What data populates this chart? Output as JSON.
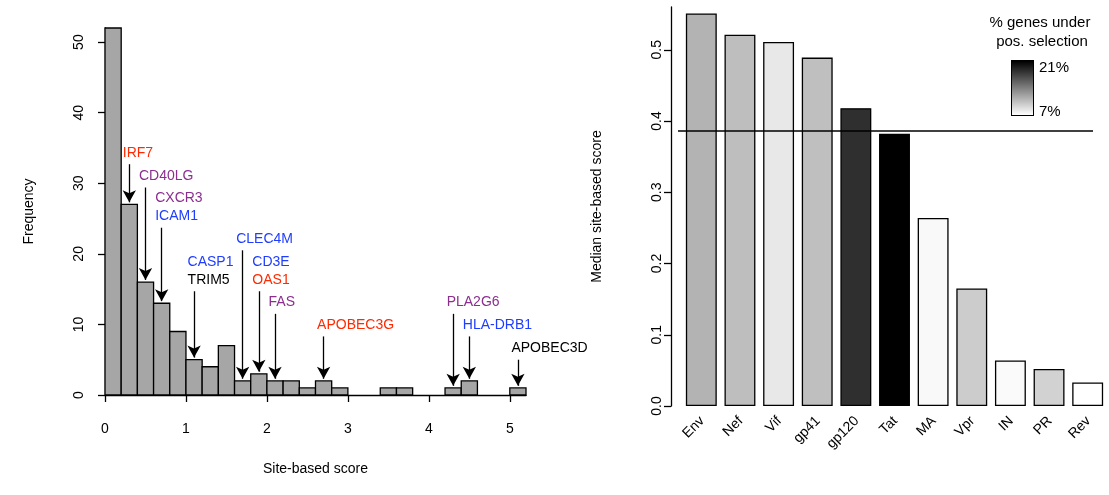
{
  "chart_data": [
    {
      "type": "histogram",
      "xlabel": "Site-based score",
      "ylabel": "Frequency",
      "color": "#a6a6a6",
      "bins": [
        0,
        0.2,
        0.4,
        0.6,
        0.8,
        1.0,
        1.2,
        1.4,
        1.6,
        1.8,
        2.0,
        2.2,
        2.4,
        2.6,
        2.8,
        3.0,
        3.2,
        3.4,
        3.6,
        3.8,
        4.0,
        4.2,
        4.4,
        4.6,
        4.8,
        5.0,
        5.2
      ],
      "values": [
        52,
        27,
        16,
        13,
        9,
        5,
        4,
        7,
        2,
        3,
        2,
        2,
        1,
        2,
        1,
        0,
        0,
        1,
        1,
        0,
        0,
        1,
        2,
        0,
        0,
        1
      ],
      "xlim": [
        0,
        5.2
      ],
      "xticks": [
        0,
        1,
        2,
        3,
        4,
        5
      ],
      "ylim": [
        0,
        52
      ],
      "yticks": [
        0,
        10,
        20,
        30,
        40,
        50
      ],
      "annotations": [
        {
          "text": "IRF7",
          "x": 0.3,
          "y": 27
        },
        {
          "text": "CD40LG",
          "x": 0.5,
          "y": 16
        },
        "CXCR3",
        {
          "text": "ICAM1",
          "x": 0.7,
          "y": 13
        },
        {
          "text": "CLEC4M",
          "x": 1.7,
          "y": 2
        },
        "CASP1",
        {
          "text": "TRIM5",
          "x": 1.1,
          "y": 5
        },
        "CD3E",
        {
          "text": "OAS1",
          "x": 1.9,
          "y": 3
        },
        {
          "text": "FAS",
          "x": 2.1,
          "y": 2
        },
        {
          "text": "APOBEC3G",
          "x": 2.7,
          "y": 2
        },
        {
          "text": "PLA2G6",
          "x": 4.3,
          "y": 1
        },
        {
          "text": "HLA-DRB1",
          "x": 4.5,
          "y": 2
        },
        {
          "text": "APOBEC3D",
          "x": 5.1,
          "y": 1
        }
      ]
    },
    {
      "type": "bar",
      "ylabel": "Median site-based score",
      "categories": [
        "Env",
        "Nef",
        "Vif",
        "gp41",
        "gp120",
        "Tat",
        "MA",
        "Vpr",
        "IN",
        "PR",
        "Rev"
      ],
      "values": [
        0.551,
        0.521,
        0.511,
        0.489,
        0.418,
        0.382,
        0.264,
        0.165,
        0.064,
        0.052,
        0.033
      ],
      "colors": [
        "#b3b3b3",
        "#bebebe",
        "#e8e8e8",
        "#bfbfbf",
        "#2f2f2f",
        "#000000",
        "#f9f9f9",
        "#cccccc",
        "#fafafa",
        "#d2d2d2",
        "#ffffff"
      ],
      "ylim": [
        0,
        0.56
      ],
      "yticks": [
        {
          "value": 0,
          "label": "0.0"
        },
        0.1,
        0.2,
        0.3,
        0.4,
        0.5
      ],
      "ref_lines": [
        {
          "axis": "y",
          "value": 0.386,
          "color": "#000000"
        }
      ],
      "clabel": "% genes under pos. selection",
      "annotations": [
        "21%",
        "7%"
      ]
    }
  ]
}
